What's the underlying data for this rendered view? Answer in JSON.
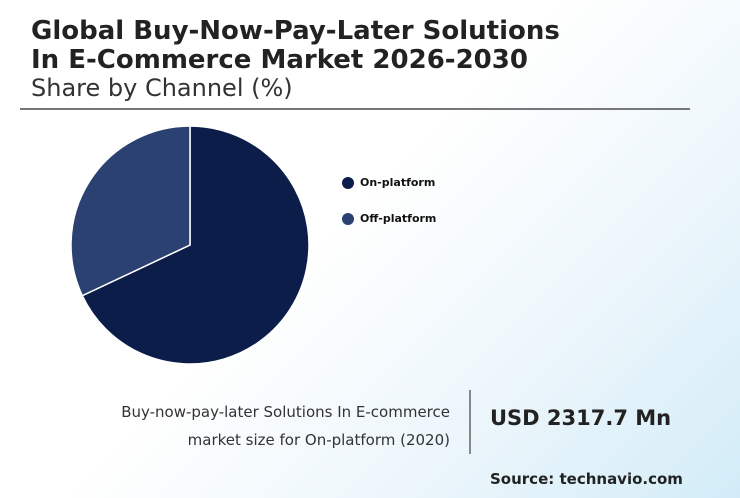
{
  "chart_data": {
    "type": "pie",
    "title": [
      "Global Buy-Now-Pay-Later Solutions",
      "In E-Commerce Market 2026-2030"
    ],
    "subtitle": "Share by Channel (%)",
    "categories": [
      "On-platform",
      "Off-platform"
    ],
    "values": [
      68,
      32
    ],
    "colors": [
      "#0b1d48",
      "#2b4171"
    ],
    "legend": "right"
  },
  "footer": {
    "description": "Buy-now-pay-later Solutions In E-commerce market size for On-platform (2020)",
    "value": "USD 2317.7 Mn",
    "source": "Source: technavio.com"
  }
}
